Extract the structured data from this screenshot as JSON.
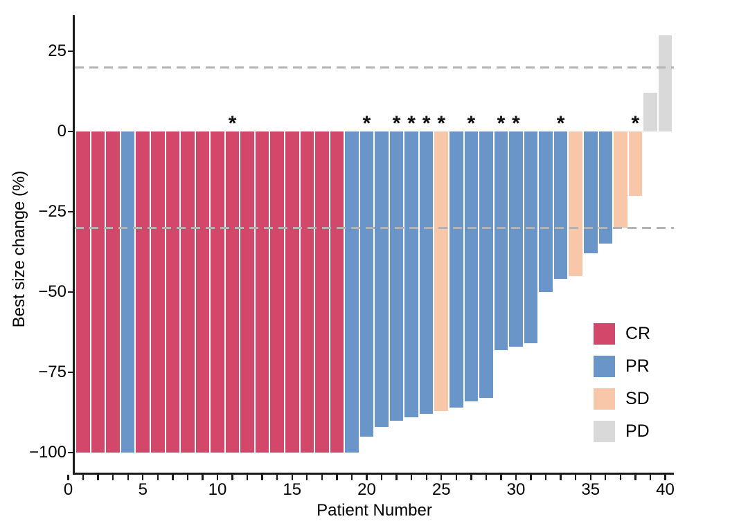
{
  "figure": {
    "background": "#ffffff"
  },
  "chart_data": {
    "type": "bar",
    "subtype": "waterfall",
    "title": "",
    "xlabel": "Patient Number",
    "ylabel": "Best size change (%)",
    "annotation_symbol": "*",
    "grid": "off",
    "x_axis": {
      "range": [
        0,
        40
      ],
      "labeled_ticks": [
        {
          "value": 0,
          "label": "0"
        },
        {
          "value": 5,
          "label": "5"
        },
        {
          "value": 10,
          "label": "10"
        },
        {
          "value": 15,
          "label": "15"
        },
        {
          "value": 20,
          "label": "20"
        },
        {
          "value": 25,
          "label": "25"
        },
        {
          "value": 30,
          "label": "30"
        },
        {
          "value": 35,
          "label": "35"
        },
        {
          "value": 40,
          "label": "40"
        }
      ],
      "minor_ticks": {
        "from": 0,
        "to": 40,
        "step": 1
      }
    },
    "y_axis": {
      "range": [
        -106,
        36
      ],
      "ticks": [
        {
          "value": 25,
          "label": "25"
        },
        {
          "value": 0,
          "label": "0"
        },
        {
          "value": -25,
          "label": "−25"
        },
        {
          "value": -50,
          "label": "−50"
        },
        {
          "value": -75,
          "label": "−75"
        },
        {
          "value": -100,
          "label": "−100"
        }
      ]
    },
    "reference_lines": [
      {
        "value": 20,
        "style": "dashed"
      },
      {
        "value": -30,
        "style": "dashed"
      }
    ],
    "legend": {
      "position": "inside-right",
      "items": [
        {
          "response": "CR",
          "label": "CR",
          "color": "#d3486a"
        },
        {
          "response": "PR",
          "label": "PR",
          "color": "#6a95c8"
        },
        {
          "response": "SD",
          "label": "SD",
          "color": "#f8c6a8"
        },
        {
          "response": "PD",
          "label": "PD",
          "color": "#d9d9d9"
        }
      ]
    },
    "style_colors": {
      "reference_line": "#b3b3b3",
      "axis": "#1a1a1a",
      "text": "#000000"
    },
    "bars": [
      {
        "patient": 1,
        "value": -100,
        "response": "CR",
        "asterisk": false
      },
      {
        "patient": 2,
        "value": -100,
        "response": "CR",
        "asterisk": false
      },
      {
        "patient": 3,
        "value": -100,
        "response": "CR",
        "asterisk": false
      },
      {
        "patient": 4,
        "value": -100,
        "response": "PR",
        "asterisk": false
      },
      {
        "patient": 5,
        "value": -100,
        "response": "CR",
        "asterisk": false
      },
      {
        "patient": 6,
        "value": -100,
        "response": "CR",
        "asterisk": false
      },
      {
        "patient": 7,
        "value": -100,
        "response": "CR",
        "asterisk": false
      },
      {
        "patient": 8,
        "value": -100,
        "response": "CR",
        "asterisk": false
      },
      {
        "patient": 9,
        "value": -100,
        "response": "CR",
        "asterisk": false
      },
      {
        "patient": 10,
        "value": -100,
        "response": "CR",
        "asterisk": false
      },
      {
        "patient": 11,
        "value": -100,
        "response": "CR",
        "asterisk": true
      },
      {
        "patient": 12,
        "value": -100,
        "response": "CR",
        "asterisk": false
      },
      {
        "patient": 13,
        "value": -100,
        "response": "CR",
        "asterisk": false
      },
      {
        "patient": 14,
        "value": -100,
        "response": "CR",
        "asterisk": false
      },
      {
        "patient": 15,
        "value": -100,
        "response": "CR",
        "asterisk": false
      },
      {
        "patient": 16,
        "value": -100,
        "response": "CR",
        "asterisk": false
      },
      {
        "patient": 17,
        "value": -100,
        "response": "CR",
        "asterisk": false
      },
      {
        "patient": 18,
        "value": -100,
        "response": "CR",
        "asterisk": false
      },
      {
        "patient": 19,
        "value": -100,
        "response": "PR",
        "asterisk": false
      },
      {
        "patient": 20,
        "value": -95,
        "response": "PR",
        "asterisk": true
      },
      {
        "patient": 21,
        "value": -92,
        "response": "PR",
        "asterisk": false
      },
      {
        "patient": 22,
        "value": -90,
        "response": "PR",
        "asterisk": true
      },
      {
        "patient": 23,
        "value": -89,
        "response": "PR",
        "asterisk": true
      },
      {
        "patient": 24,
        "value": -88,
        "response": "PR",
        "asterisk": true
      },
      {
        "patient": 25,
        "value": -87,
        "response": "SD",
        "asterisk": true
      },
      {
        "patient": 26,
        "value": -86,
        "response": "PR",
        "asterisk": false
      },
      {
        "patient": 27,
        "value": -84,
        "response": "PR",
        "asterisk": true
      },
      {
        "patient": 28,
        "value": -83,
        "response": "PR",
        "asterisk": false
      },
      {
        "patient": 29,
        "value": -68,
        "response": "PR",
        "asterisk": true
      },
      {
        "patient": 30,
        "value": -67,
        "response": "PR",
        "asterisk": true
      },
      {
        "patient": 31,
        "value": -66,
        "response": "PR",
        "asterisk": false
      },
      {
        "patient": 32,
        "value": -50,
        "response": "PR",
        "asterisk": false
      },
      {
        "patient": 33,
        "value": -46,
        "response": "PR",
        "asterisk": true
      },
      {
        "patient": 34,
        "value": -45,
        "response": "SD",
        "asterisk": false
      },
      {
        "patient": 35,
        "value": -38,
        "response": "PR",
        "asterisk": false
      },
      {
        "patient": 36,
        "value": -35,
        "response": "PR",
        "asterisk": false
      },
      {
        "patient": 37,
        "value": -30,
        "response": "SD",
        "asterisk": false
      },
      {
        "patient": 38,
        "value": -20,
        "response": "SD",
        "asterisk": true
      },
      {
        "patient": 39,
        "value": 12,
        "response": "PD",
        "asterisk": false
      },
      {
        "patient": 40,
        "value": 30,
        "response": "PD",
        "asterisk": false
      }
    ]
  }
}
